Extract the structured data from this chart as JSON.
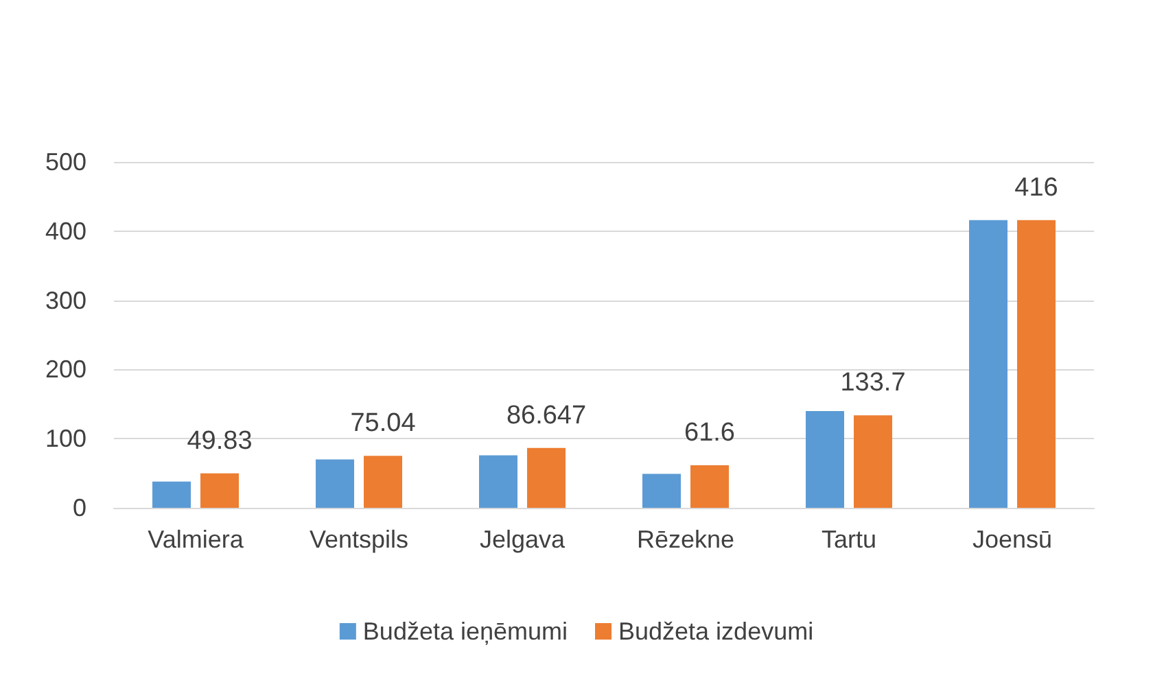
{
  "chart_data": {
    "type": "bar",
    "categories": [
      "Valmiera",
      "Ventspils",
      "Jelgava",
      "Rēzekne",
      "Tartu",
      "Joensū"
    ],
    "series": [
      {
        "name": "Budžeta ieņēmumi",
        "color": "#5b9bd5",
        "values": [
          38,
          70,
          76,
          49,
          140,
          416
        ]
      },
      {
        "name": "Budžeta izdevumi",
        "color": "#ed7d31",
        "values": [
          49.83,
          75.04,
          86.647,
          61.6,
          133.7,
          416
        ],
        "value_labels": [
          "49.83",
          "75.04",
          "86.647",
          "61.6",
          "133.7",
          "416"
        ]
      }
    ],
    "ylim": [
      0,
      500
    ],
    "yticks": [
      0,
      100,
      200,
      300,
      400,
      500
    ],
    "grid": "y",
    "legend": "bottom"
  }
}
